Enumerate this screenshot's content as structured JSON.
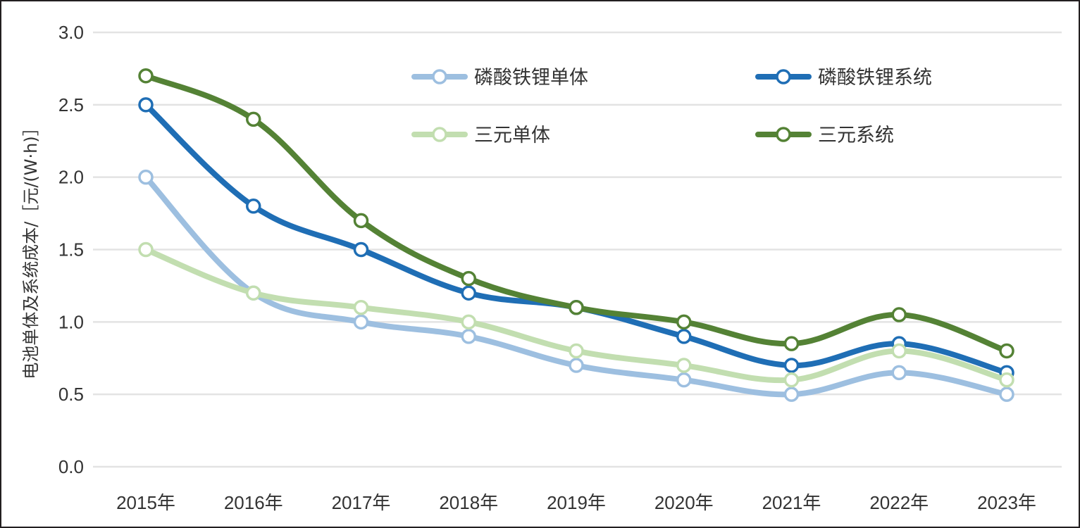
{
  "chart_data": {
    "type": "line",
    "title": "",
    "xlabel": "",
    "ylabel": "电池单体及系统成本/［元/(W·h)］",
    "categories": [
      "2015年",
      "2016年",
      "2017年",
      "2018年",
      "2019年",
      "2020年",
      "2021年",
      "2022年",
      "2023年"
    ],
    "ylim": [
      0,
      3.0
    ],
    "yticks": [
      "0.0",
      "0.5",
      "1.0",
      "1.5",
      "2.0",
      "2.5",
      "3.0"
    ],
    "grid": true,
    "legend_position": "top-right",
    "series": [
      {
        "name": "磷酸铁锂单体",
        "color": "#9dbfe0",
        "values": [
          2.0,
          1.2,
          1.0,
          0.9,
          0.7,
          0.6,
          0.5,
          0.65,
          0.5
        ]
      },
      {
        "name": "磷酸铁锂系统",
        "color": "#1f6eb5",
        "values": [
          2.5,
          1.8,
          1.5,
          1.2,
          1.1,
          0.9,
          0.7,
          0.85,
          0.65
        ]
      },
      {
        "name": "三元单体",
        "color": "#c2deb0",
        "values": [
          1.5,
          1.2,
          1.1,
          1.0,
          0.8,
          0.7,
          0.6,
          0.8,
          0.6
        ]
      },
      {
        "name": "三元系统",
        "color": "#548235",
        "values": [
          2.7,
          2.4,
          1.7,
          1.3,
          1.1,
          1.0,
          0.85,
          1.05,
          0.8
        ]
      }
    ]
  }
}
